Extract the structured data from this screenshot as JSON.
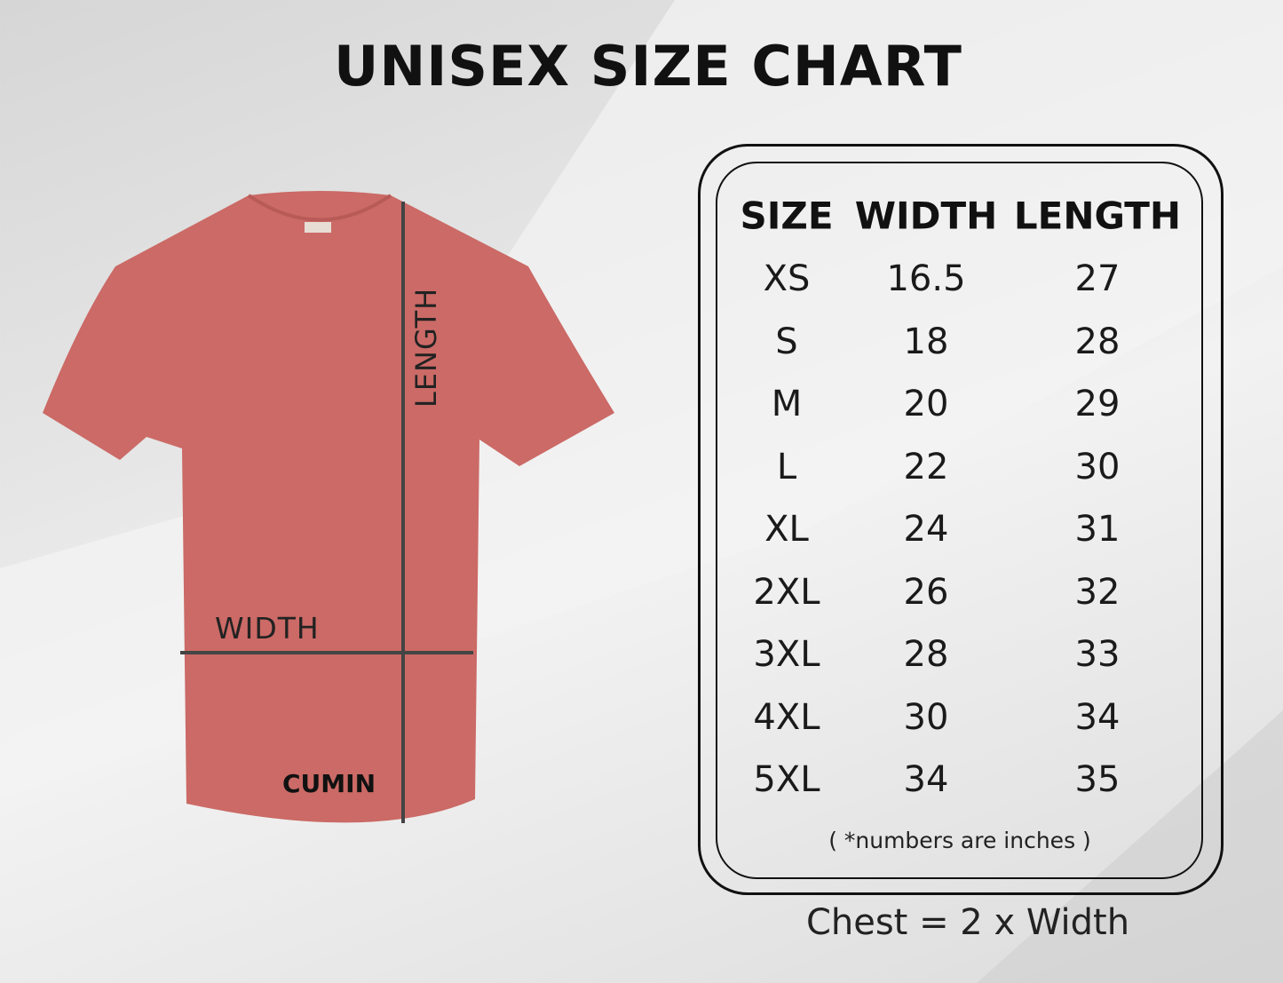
{
  "title": "UNISEX SIZE CHART",
  "shirt": {
    "color_name": "CUMIN",
    "shirt_color": "#cb6a66",
    "length_label": "LENGTH",
    "width_label": "WIDTH"
  },
  "table": {
    "headers": [
      "SIZE",
      "WIDTH",
      "LENGTH"
    ],
    "rows": [
      [
        "XS",
        "16.5",
        "27"
      ],
      [
        "S",
        "18",
        "28"
      ],
      [
        "M",
        "20",
        "29"
      ],
      [
        "L",
        "22",
        "30"
      ],
      [
        "XL",
        "24",
        "31"
      ],
      [
        "2XL",
        "26",
        "32"
      ],
      [
        "3XL",
        "28",
        "33"
      ],
      [
        "4XL",
        "30",
        "34"
      ],
      [
        "5XL",
        "34",
        "35"
      ]
    ],
    "note": "( *numbers are inches )"
  },
  "chest_note": "Chest = 2 x Width"
}
